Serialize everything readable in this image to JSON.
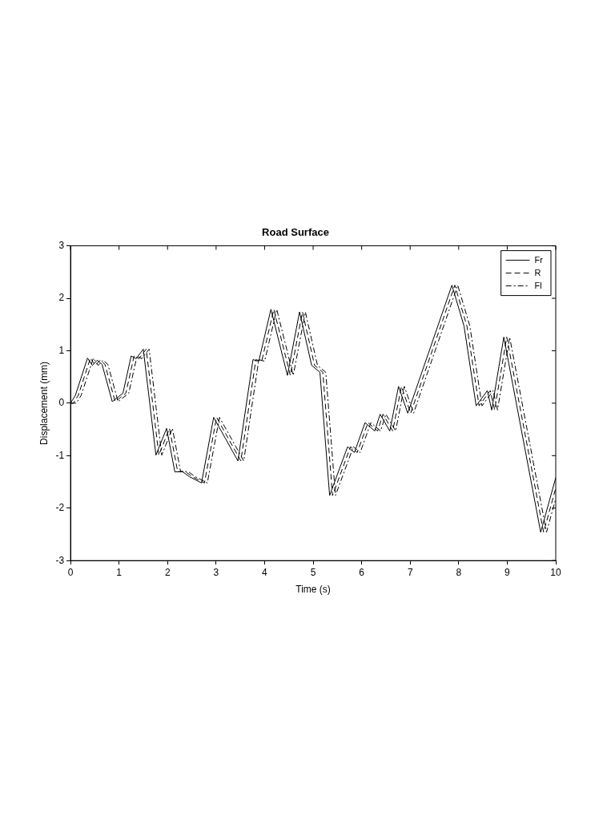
{
  "chart_data": {
    "type": "line",
    "title": "Road Surface",
    "xlabel": "Time (s)",
    "ylabel": "Displacement (mm)",
    "xlim": [
      0,
      10
    ],
    "xticks": [
      0,
      1,
      2,
      3,
      4,
      5,
      6,
      7,
      8,
      9,
      10
    ],
    "ylim": [
      -3,
      3
    ],
    "yticks": [
      -3,
      -2,
      -1,
      0,
      1,
      2,
      3
    ],
    "grid": false,
    "legend": "top right",
    "marker": "none",
    "series": [
      {
        "name": "Fr",
        "color": "#000000",
        "line_style": "solid",
        "x": [
          0,
          0.1,
          0.35,
          0.45,
          0.55,
          0.65,
          0.86,
          1.08,
          1.25,
          1.35,
          1.5,
          1.76,
          1.98,
          2.15,
          2.3,
          2.45,
          2.7,
          2.95,
          3.45,
          3.76,
          3.88,
          4.13,
          4.47,
          4.72,
          4.97,
          5.14,
          5.34,
          5.71,
          5.85,
          6.07,
          6.27,
          6.38,
          6.58,
          6.76,
          6.95,
          7.86,
          8.11,
          8.36,
          8.59,
          8.68,
          8.93,
          9.69,
          10
        ],
        "values": [
          0,
          0.15,
          0.86,
          0.72,
          0.82,
          0.74,
          0.03,
          0.19,
          0.9,
          0.85,
          1.03,
          -0.99,
          -0.48,
          -1.31,
          -1.3,
          -1.4,
          -1.52,
          -0.27,
          -1.1,
          0.83,
          0.8,
          1.79,
          0.53,
          1.74,
          0.72,
          0.59,
          -1.76,
          -0.83,
          -0.94,
          -0.37,
          -0.53,
          -0.21,
          -0.53,
          0.32,
          -0.19,
          2.25,
          1.47,
          -0.05,
          0.24,
          -0.13,
          1.26,
          -2.46,
          -1.42
        ]
      },
      {
        "name": "R",
        "color": "#000000",
        "line_style": "dashed",
        "x": [
          0,
          0.06,
          0.16,
          0.41,
          0.51,
          0.61,
          0.71,
          0.92,
          1.14,
          1.31,
          1.41,
          1.56,
          1.82,
          2.04,
          2.21,
          2.36,
          2.51,
          2.76,
          3.01,
          3.51,
          3.82,
          3.94,
          4.19,
          4.53,
          4.78,
          5.03,
          5.2,
          5.4,
          5.77,
          5.91,
          6.13,
          6.33,
          6.44,
          6.64,
          6.82,
          7.01,
          7.92,
          8.17,
          8.42,
          8.65,
          8.74,
          8.99,
          9.75,
          10
        ],
        "values": [
          0,
          0,
          0.15,
          0.86,
          0.72,
          0.82,
          0.74,
          0.03,
          0.19,
          0.9,
          0.85,
          1.03,
          -0.99,
          -0.48,
          -1.31,
          -1.3,
          -1.4,
          -1.52,
          -0.27,
          -1.1,
          0.83,
          0.8,
          1.79,
          0.53,
          1.74,
          0.72,
          0.59,
          -1.76,
          -0.83,
          -0.94,
          -0.37,
          -0.53,
          -0.21,
          -0.53,
          0.32,
          -0.19,
          2.25,
          1.47,
          -0.05,
          0.24,
          -0.13,
          1.26,
          -2.46,
          -1.62
        ]
      },
      {
        "name": "Fl",
        "color": "#000000",
        "line_style": "dashdot",
        "x": [
          0,
          0.12,
          0.22,
          0.47,
          0.57,
          0.67,
          0.77,
          0.98,
          1.2,
          1.37,
          1.47,
          1.62,
          1.88,
          2.1,
          2.27,
          2.42,
          2.57,
          2.82,
          3.07,
          3.57,
          3.88,
          4,
          4.25,
          4.59,
          4.84,
          5.09,
          5.26,
          5.46,
          5.83,
          5.97,
          6.19,
          6.39,
          6.5,
          6.7,
          6.88,
          7.07,
          7.98,
          8.23,
          8.48,
          8.71,
          8.8,
          9.05,
          9.81,
          10
        ],
        "values": [
          0,
          0,
          0.15,
          0.86,
          0.72,
          0.82,
          0.74,
          0.03,
          0.19,
          0.9,
          0.85,
          1.03,
          -0.99,
          -0.48,
          -1.31,
          -1.3,
          -1.4,
          -1.52,
          -0.27,
          -1.1,
          0.83,
          0.8,
          1.79,
          0.53,
          1.74,
          0.72,
          0.59,
          -1.76,
          -0.83,
          -0.94,
          -0.37,
          -0.53,
          -0.21,
          -0.53,
          0.32,
          -0.19,
          2.25,
          1.47,
          -0.05,
          0.24,
          -0.13,
          1.26,
          -2.46,
          -1.82
        ]
      }
    ]
  }
}
